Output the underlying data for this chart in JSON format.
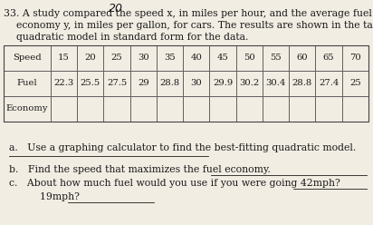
{
  "title_number": "33.",
  "title_text": " A study compared the speed x, in miles per hour, and the average fuel\n    economy y, in miles per gallon, for cars. The results are shown in the table. Find a\n    quadratic model in standard form for the data.",
  "handwritten": "20",
  "speed_label": "Speed",
  "fuel_label": "Fuel",
  "economy_label": "Economy",
  "speed_values": [
    "15",
    "20",
    "25",
    "30",
    "35",
    "40",
    "45",
    "50",
    "55",
    "60",
    "65",
    "70"
  ],
  "fuel_values": [
    "22.3",
    "25.5",
    "27.5",
    "29",
    "28.8",
    "30",
    "29.9",
    "30.2",
    "30.4",
    "28.8",
    "27.4",
    "25"
  ],
  "question_a": "a.   Use a graphing calculator to find the best-fitting quadratic model.",
  "question_b": "b.   Find the speed that maximizes the fuel economy.",
  "question_c": "c.   About how much fuel would you use if you were going 42mph?",
  "question_c2": "      19mph?",
  "background_color": "#f2ede3",
  "text_color": "#1a1a1a",
  "font_size_title": 7.8,
  "font_size_table": 7.2,
  "font_size_questions": 7.8
}
